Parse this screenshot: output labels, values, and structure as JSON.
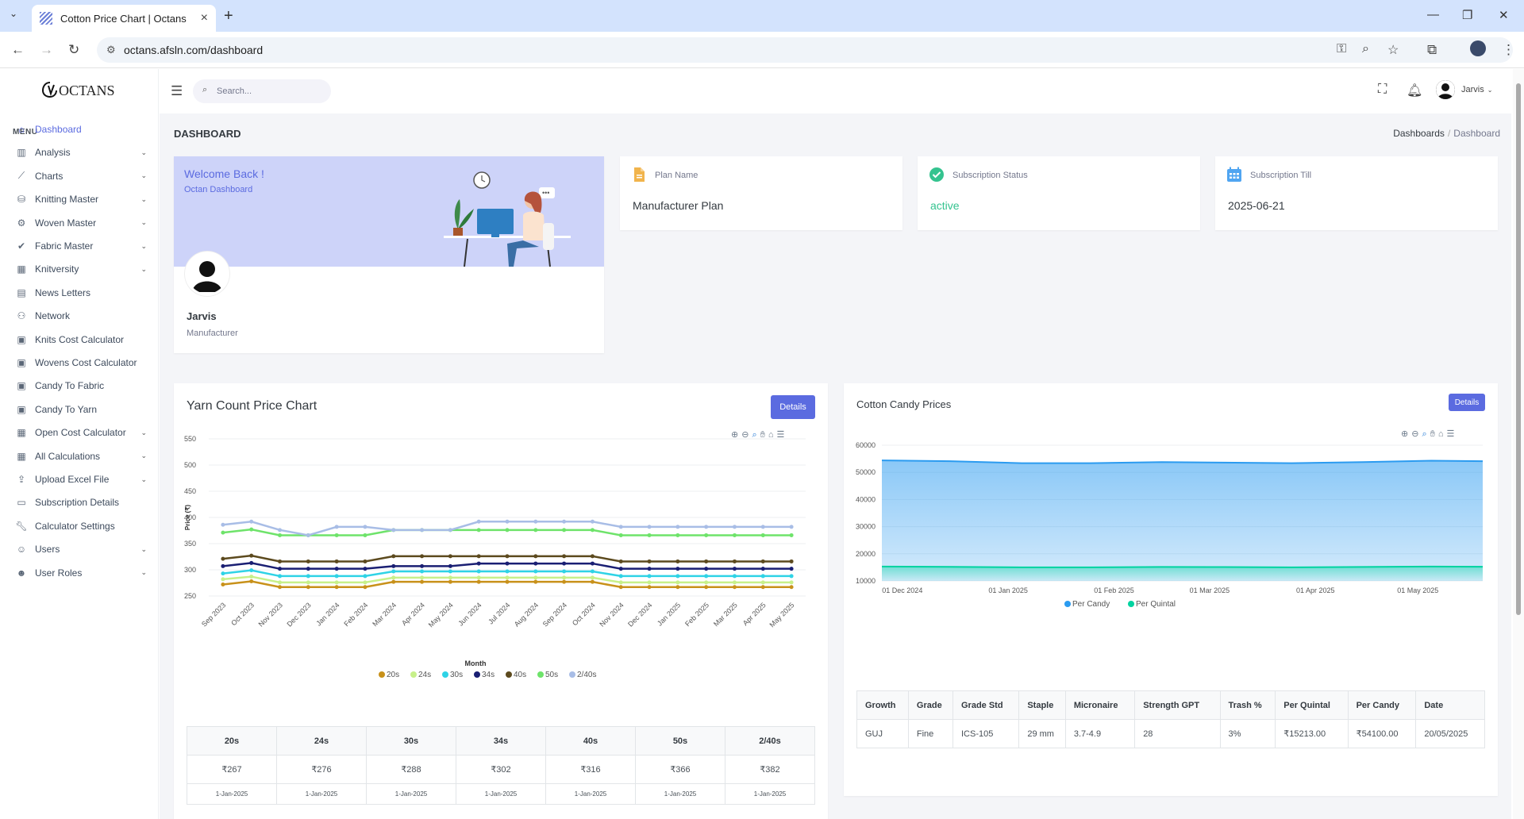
{
  "browser": {
    "tab_title": "Cotton Price Chart | Octans",
    "url": "octans.afsln.com/dashboard"
  },
  "sidebar": {
    "brand": "OCTANS",
    "menu_title": "MENU",
    "items": [
      {
        "label": "Dashboard",
        "icon": "home-icon",
        "chevron": false,
        "active": true
      },
      {
        "label": "Analysis",
        "icon": "bar-chart-icon",
        "chevron": true
      },
      {
        "label": "Charts",
        "icon": "line-chart-icon",
        "chevron": true
      },
      {
        "label": "Knitting Master",
        "icon": "database-icon",
        "chevron": true
      },
      {
        "label": "Woven Master",
        "icon": "gear-icon",
        "chevron": true
      },
      {
        "label": "Fabric Master",
        "icon": "check-badge-icon",
        "chevron": true
      },
      {
        "label": "Knitversity",
        "icon": "calendar-icon",
        "chevron": true
      },
      {
        "label": "News Letters",
        "icon": "newspaper-icon",
        "chevron": false
      },
      {
        "label": "Network",
        "icon": "network-icon",
        "chevron": false
      },
      {
        "label": "Knits Cost Calculator",
        "icon": "calculator-icon",
        "chevron": false
      },
      {
        "label": "Wovens Cost Calculator",
        "icon": "calculator-icon",
        "chevron": false
      },
      {
        "label": "Candy To Fabric",
        "icon": "calculator-icon",
        "chevron": false
      },
      {
        "label": "Candy To Yarn",
        "icon": "calculator-icon",
        "chevron": false
      },
      {
        "label": "Open Cost Calculator",
        "icon": "calendar-icon",
        "chevron": true
      },
      {
        "label": "All Calculations",
        "icon": "table-icon",
        "chevron": true
      },
      {
        "label": "Upload Excel File",
        "icon": "upload-icon",
        "chevron": true
      },
      {
        "label": "Subscription Details",
        "icon": "card-icon",
        "chevron": false
      },
      {
        "label": "Calculator Settings",
        "icon": "wrench-icon",
        "chevron": false
      },
      {
        "label": "Users",
        "icon": "user-icon",
        "chevron": true
      },
      {
        "label": "User Roles",
        "icon": "user-roles-icon",
        "chevron": true
      }
    ]
  },
  "topbar": {
    "search_placeholder": "Search...",
    "user_name": "Jarvis"
  },
  "page": {
    "title": "DASHBOARD",
    "breadcrumb": [
      "Dashboards",
      "Dashboard"
    ]
  },
  "welcome": {
    "heading": "Welcome Back !",
    "subheading": "Octan Dashboard",
    "name": "Jarvis",
    "role": "Manufacturer"
  },
  "stats": [
    {
      "label": "Plan Name",
      "value": "Manufacturer Plan",
      "icon": "document-icon",
      "color": "#f1b44c"
    },
    {
      "label": "Subscription Status",
      "value": "active",
      "icon": "check-circle-icon",
      "color": "#34c38f"
    },
    {
      "label": "Subscription Till",
      "value": "2025-06-21",
      "icon": "calendar-icon",
      "color": "#50a5f1"
    }
  ],
  "yarn_card": {
    "title": "Yarn Count Price Chart",
    "details_label": "Details",
    "table": {
      "headers": [
        "20s",
        "24s",
        "30s",
        "34s",
        "40s",
        "50s",
        "2/40s"
      ],
      "prices": [
        "₹267",
        "₹276",
        "₹288",
        "₹302",
        "₹316",
        "₹366",
        "₹382"
      ],
      "dates": [
        "1-Jan-2025",
        "1-Jan-2025",
        "1-Jan-2025",
        "1-Jan-2025",
        "1-Jan-2025",
        "1-Jan-2025",
        "1-Jan-2025"
      ]
    }
  },
  "cotton_card": {
    "title": "Cotton Candy Prices",
    "details_label": "Details",
    "table": {
      "headers": [
        "Growth",
        "Grade",
        "Grade Std",
        "Staple",
        "Micronaire",
        "Strength GPT",
        "Trash %",
        "Per Quintal",
        "Per Candy",
        "Date"
      ],
      "row": [
        "GUJ",
        "Fine",
        "ICS-105",
        "29 mm",
        "3.7-4.9",
        "28",
        "3%",
        "₹15213.00",
        "₹54100.00",
        "20/05/2025"
      ]
    }
  },
  "chart_data": [
    {
      "type": "line",
      "title": "",
      "xlabel": "Month",
      "ylabel": "Price (₹)",
      "ylim": [
        250,
        550
      ],
      "yticks": [
        250,
        300,
        350,
        400,
        450,
        500,
        550
      ],
      "grid": true,
      "legend": "bottom",
      "categories": [
        "Sep 2023",
        "Oct 2023",
        "Nov 2023",
        "Dec 2023",
        "Jan 2024",
        "Feb 2024",
        "Mar 2024",
        "Apr 2024",
        "May 2024",
        "Jun 2024",
        "Jul 2024",
        "Aug 2024",
        "Sep 2024",
        "Oct 2024",
        "Nov 2024",
        "Dec 2024",
        "Jan 2025",
        "Feb 2025",
        "Mar 2025",
        "Apr 2025",
        "May 2025"
      ],
      "series": [
        {
          "name": "20s",
          "color": "#c8911a",
          "values": [
            272,
            278,
            267,
            267,
            267,
            267,
            277,
            277,
            277,
            277,
            277,
            277,
            277,
            277,
            267,
            267,
            267,
            267,
            267,
            267,
            267
          ]
        },
        {
          "name": "24s",
          "color": "#c7f08a",
          "values": [
            282,
            287,
            276,
            276,
            276,
            276,
            285,
            285,
            285,
            285,
            285,
            285,
            285,
            285,
            276,
            276,
            276,
            276,
            276,
            276,
            276
          ]
        },
        {
          "name": "30s",
          "color": "#2fd3e6",
          "values": [
            293,
            299,
            288,
            288,
            288,
            288,
            297,
            297,
            297,
            297,
            297,
            297,
            297,
            297,
            288,
            288,
            288,
            288,
            288,
            288,
            288
          ]
        },
        {
          "name": "34s",
          "color": "#1a1f73",
          "values": [
            307,
            313,
            302,
            302,
            302,
            302,
            307,
            307,
            307,
            312,
            312,
            312,
            312,
            312,
            302,
            302,
            302,
            302,
            302,
            302,
            302
          ]
        },
        {
          "name": "40s",
          "color": "#5c4a1e",
          "values": [
            321,
            327,
            316,
            316,
            316,
            316,
            326,
            326,
            326,
            326,
            326,
            326,
            326,
            326,
            316,
            316,
            316,
            316,
            316,
            316,
            316
          ]
        },
        {
          "name": "50s",
          "color": "#6ee36a",
          "values": [
            371,
            377,
            366,
            366,
            366,
            366,
            376,
            376,
            376,
            376,
            376,
            376,
            376,
            376,
            366,
            366,
            366,
            366,
            366,
            366,
            366
          ]
        },
        {
          "name": "2/40s",
          "color": "#a8bde6",
          "values": [
            386,
            392,
            376,
            366,
            382,
            382,
            376,
            376,
            376,
            392,
            392,
            392,
            392,
            392,
            382,
            382,
            382,
            382,
            382,
            382,
            382
          ]
        }
      ]
    },
    {
      "type": "area",
      "title": "",
      "ylim": [
        10000,
        60000
      ],
      "yticks": [
        10000,
        20000,
        30000,
        40000,
        50000,
        60000
      ],
      "grid": true,
      "legend": "bottom",
      "xticks": [
        "01 Dec 2024",
        "01 Jan 2025",
        "01 Feb 2025",
        "01 Mar 2025",
        "01 Apr 2025",
        "01 May 2025"
      ],
      "x": [
        "2024-11-25",
        "2024-12-15",
        "2025-01-05",
        "2025-01-25",
        "2025-02-15",
        "2025-03-05",
        "2025-03-25",
        "2025-04-15",
        "2025-05-05",
        "2025-05-20"
      ],
      "series": [
        {
          "name": "Per Candy",
          "color": "#2b9bf0",
          "values": [
            54400,
            54100,
            53400,
            53400,
            53800,
            53600,
            53400,
            53800,
            54300,
            54100
          ]
        },
        {
          "name": "Per Quintal",
          "color": "#00d3a0",
          "values": [
            15300,
            15200,
            15000,
            15000,
            15150,
            15100,
            15000,
            15150,
            15300,
            15213
          ]
        }
      ]
    }
  ]
}
